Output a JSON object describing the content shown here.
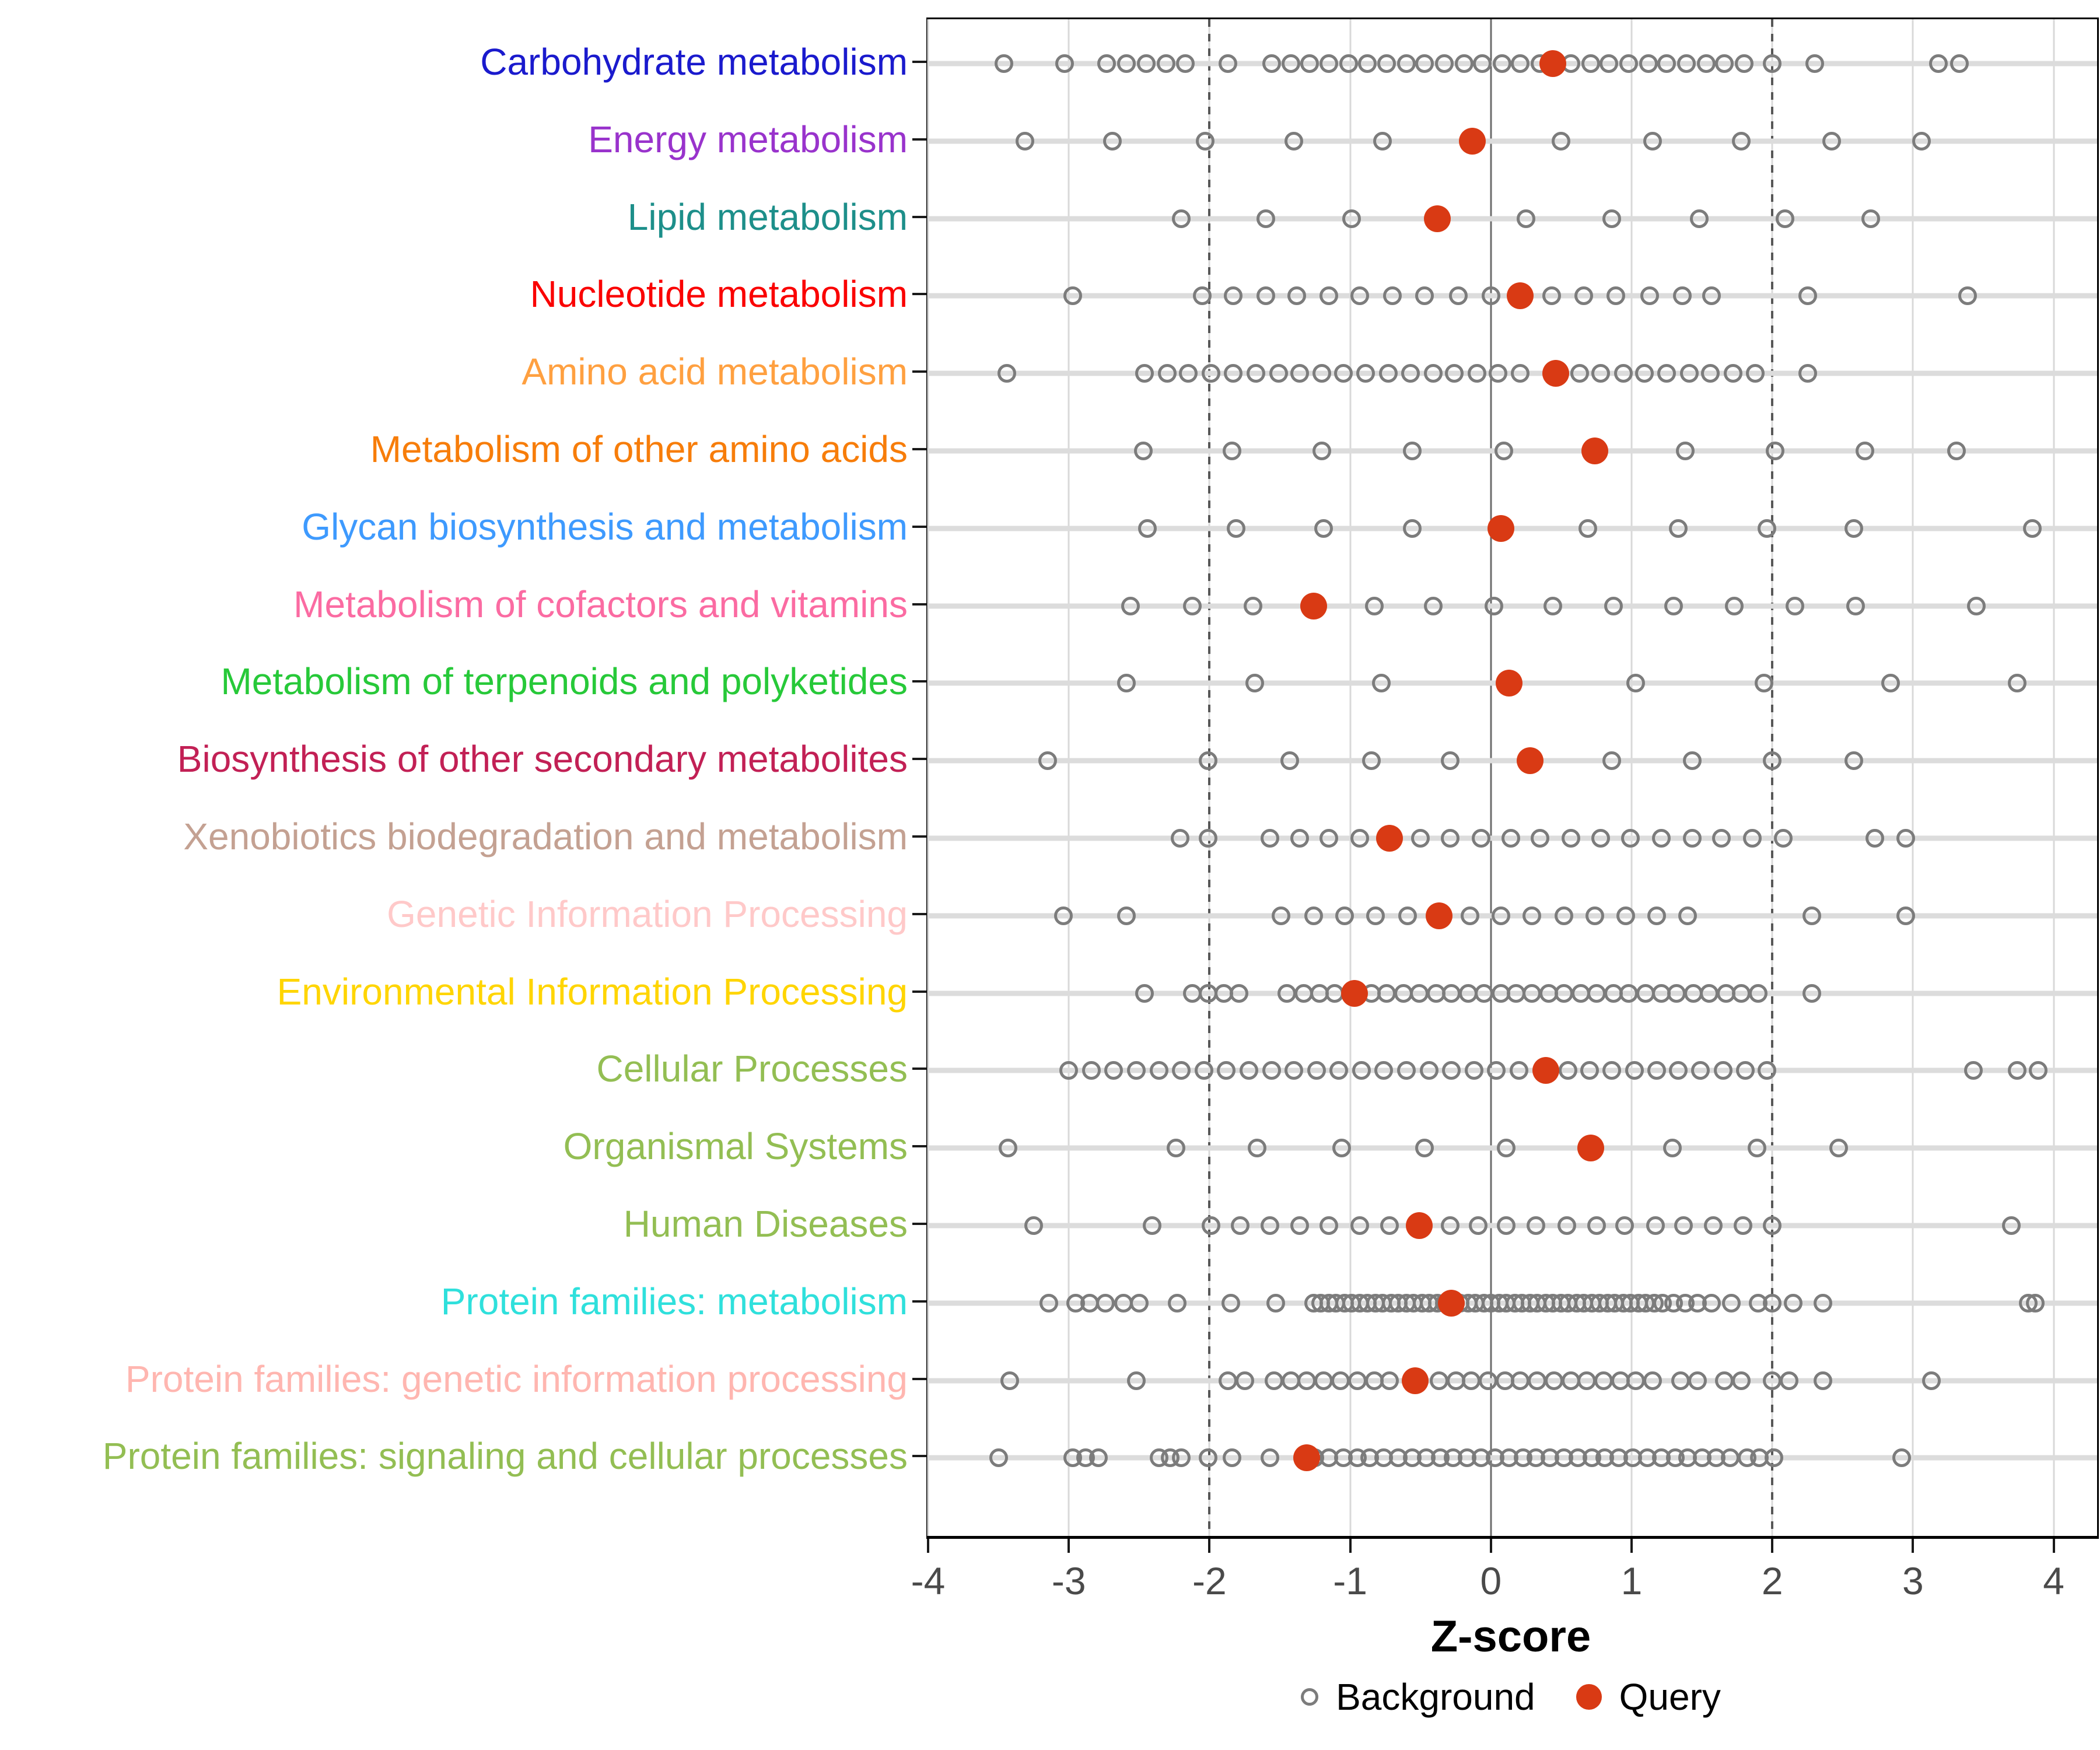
{
  "axis": {
    "label": "Z-score",
    "ticks": [
      -4,
      -3,
      -2,
      -1,
      0,
      1,
      2,
      3,
      4
    ],
    "reference_lines_dashed": [
      -2,
      2
    ],
    "reference_line_solid": 0
  },
  "legend": {
    "background_label": "Background",
    "query_label": "Query"
  },
  "colors": {
    "query": "#d93a14",
    "background_stroke": "#7c7c7c",
    "row_band": "#dcdcdc",
    "gridline": "#d9d9d9",
    "zero_line": "#6b6b6b",
    "dashed_line": "#575757",
    "tick_label": "#4a4a4a"
  },
  "chart_data": {
    "type": "scatter",
    "xlabel": "Z-score",
    "xlim": [
      -4.0,
      4.31
    ],
    "legend_position": "bottom",
    "grid": true,
    "series_meaning": "Each row: gray open circles = Background z-scores, red dot = Query z-score",
    "categories": [
      {
        "label": "Carbohydrate metabolism",
        "color": "#1a1acd",
        "query": 0.44,
        "background": [
          -3.46,
          -3.03,
          -2.73,
          -2.59,
          -2.45,
          -2.31,
          -2.17,
          -1.87,
          -1.56,
          -1.42,
          -1.29,
          -1.15,
          -1.01,
          -0.88,
          -0.74,
          -0.6,
          -0.47,
          -0.33,
          -0.19,
          -0.06,
          0.08,
          0.21,
          0.35,
          0.57,
          0.71,
          0.84,
          0.98,
          1.12,
          1.25,
          1.39,
          1.53,
          1.66,
          1.8,
          2.0,
          2.3,
          3.18,
          3.33
        ]
      },
      {
        "label": "Energy metabolism",
        "color": "#9933cc",
        "query": -0.13,
        "background": [
          -3.31,
          -2.69,
          -2.03,
          -1.4,
          -0.77,
          0.5,
          1.15,
          1.78,
          2.42,
          3.06
        ]
      },
      {
        "label": "Lipid metabolism",
        "color": "#1d8f8a",
        "query": -0.38,
        "background": [
          -2.2,
          -1.6,
          -0.99,
          0.25,
          0.86,
          1.48,
          2.09,
          2.7
        ]
      },
      {
        "label": "Nucleotide metabolism",
        "color": "#fa0000",
        "query": 0.21,
        "background": [
          -2.97,
          -2.05,
          -1.83,
          -1.6,
          -1.38,
          -1.15,
          -0.93,
          -0.7,
          -0.47,
          -0.23,
          0.0,
          0.43,
          0.66,
          0.89,
          1.13,
          1.36,
          1.57,
          2.25,
          3.39
        ]
      },
      {
        "label": "Amino acid metabolism",
        "color": "#ffa040",
        "query": 0.46,
        "background": [
          -3.44,
          -2.46,
          -2.3,
          -2.15,
          -1.99,
          -1.83,
          -1.67,
          -1.51,
          -1.36,
          -1.2,
          -1.05,
          -0.89,
          -0.73,
          -0.57,
          -0.41,
          -0.26,
          -0.1,
          0.05,
          0.21,
          0.63,
          0.78,
          0.94,
          1.09,
          1.25,
          1.41,
          1.56,
          1.72,
          1.88,
          2.25
        ]
      },
      {
        "label": "Metabolism of other amino acids",
        "color": "#f77d0a",
        "query": 0.74,
        "background": [
          -2.47,
          -1.84,
          -1.2,
          -0.56,
          0.09,
          1.38,
          2.02,
          2.66,
          3.31
        ]
      },
      {
        "label": "Glycan biosynthesis and metabolism",
        "color": "#3e9afe",
        "query": 0.07,
        "background": [
          -2.44,
          -1.81,
          -1.19,
          -0.56,
          0.69,
          1.33,
          1.96,
          2.58,
          3.85
        ]
      },
      {
        "label": "Metabolism of cofactors and vitamins",
        "color": "#fb6ba2",
        "query": -1.26,
        "background": [
          -2.56,
          -2.12,
          -1.69,
          -0.83,
          -0.41,
          0.02,
          0.44,
          0.87,
          1.3,
          1.73,
          2.16,
          2.59,
          3.45
        ]
      },
      {
        "label": "Metabolism of terpenoids and polyketides",
        "color": "#27c939",
        "query": 0.13,
        "background": [
          -2.59,
          -1.68,
          -0.78,
          1.03,
          1.94,
          2.84,
          3.74
        ]
      },
      {
        "label": "Biosynthesis of other secondary metabolites",
        "color": "#c22055",
        "query": 0.28,
        "background": [
          -3.15,
          -2.01,
          -1.43,
          -0.85,
          -0.29,
          0.86,
          1.43,
          2.0,
          2.58
        ]
      },
      {
        "label": "Xenobiotics biodegradation and metabolism",
        "color": "#c4a192",
        "query": -0.72,
        "background": [
          -2.21,
          -2.01,
          -1.57,
          -1.36,
          -1.15,
          -0.93,
          -0.5,
          -0.29,
          -0.07,
          0.14,
          0.35,
          0.57,
          0.78,
          0.99,
          1.21,
          1.43,
          1.64,
          1.86,
          2.08,
          2.73,
          2.95
        ]
      },
      {
        "label": "Genetic Information Processing",
        "color": "#ffc9c9",
        "query": -0.37,
        "background": [
          -3.04,
          -2.59,
          -1.49,
          -1.26,
          -1.04,
          -0.82,
          -0.59,
          -0.15,
          0.07,
          0.29,
          0.52,
          0.74,
          0.96,
          1.18,
          1.4,
          2.28,
          2.95
        ]
      },
      {
        "label": "Environmental Information Processing",
        "color": "#ffd500",
        "query": -0.97,
        "background": [
          -2.46,
          -2.12,
          -2.01,
          -1.9,
          -1.79,
          -1.45,
          -1.33,
          -1.22,
          -1.11,
          -0.85,
          -0.74,
          -0.62,
          -0.51,
          -0.39,
          -0.28,
          -0.16,
          -0.05,
          0.07,
          0.18,
          0.29,
          0.41,
          0.52,
          0.64,
          0.75,
          0.87,
          0.98,
          1.1,
          1.21,
          1.32,
          1.44,
          1.55,
          1.67,
          1.78,
          1.9,
          2.28
        ]
      },
      {
        "label": "Cellular Processes",
        "color": "#93be53",
        "query": 0.39,
        "background": [
          -3.0,
          -2.84,
          -2.68,
          -2.52,
          -2.36,
          -2.2,
          -2.04,
          -1.88,
          -1.72,
          -1.56,
          -1.4,
          -1.24,
          -1.08,
          -0.92,
          -0.76,
          -0.6,
          -0.44,
          -0.28,
          -0.12,
          0.04,
          0.2,
          0.55,
          0.7,
          0.86,
          1.02,
          1.18,
          1.33,
          1.49,
          1.65,
          1.81,
          1.96,
          3.43,
          3.74,
          3.89
        ]
      },
      {
        "label": "Organismal Systems",
        "color": "#93be53",
        "query": 0.71,
        "background": [
          -3.43,
          -2.24,
          -1.66,
          -1.06,
          -0.47,
          0.11,
          1.29,
          1.89,
          2.47
        ]
      },
      {
        "label": "Human Diseases",
        "color": "#93be53",
        "query": -0.51,
        "background": [
          -3.25,
          -2.41,
          -1.99,
          -1.78,
          -1.57,
          -1.36,
          -1.15,
          -0.93,
          -0.72,
          -0.29,
          -0.09,
          0.11,
          0.32,
          0.54,
          0.75,
          0.95,
          1.17,
          1.37,
          1.58,
          1.79,
          2.0,
          3.7
        ]
      },
      {
        "label": "Protein families: metabolism",
        "color": "#2fe0dc",
        "query": -0.28,
        "background": [
          -3.14,
          -2.95,
          -2.85,
          -2.74,
          -2.61,
          -2.5,
          -2.23,
          -1.85,
          -1.53,
          -1.26,
          -1.21,
          -1.15,
          -1.1,
          -1.04,
          -0.99,
          -0.93,
          -0.88,
          -0.82,
          -0.77,
          -0.71,
          -0.66,
          -0.6,
          -0.55,
          -0.49,
          -0.44,
          -0.38,
          -0.33,
          -0.27,
          -0.22,
          -0.16,
          -0.11,
          -0.05,
          0.0,
          0.06,
          0.11,
          0.17,
          0.22,
          0.28,
          0.33,
          0.39,
          0.44,
          0.5,
          0.55,
          0.61,
          0.66,
          0.72,
          0.77,
          0.83,
          0.88,
          0.94,
          0.99,
          1.05,
          1.1,
          1.16,
          1.22,
          1.3,
          1.38,
          1.47,
          1.57,
          1.71,
          1.9,
          2.0,
          2.15,
          2.36,
          3.82,
          3.87
        ]
      },
      {
        "label": "Protein families: genetic information processing",
        "color": "#ffb6b0",
        "query": -0.54,
        "background": [
          -3.42,
          -2.52,
          -1.87,
          -1.75,
          -1.54,
          -1.42,
          -1.31,
          -1.19,
          -1.07,
          -0.95,
          -0.83,
          -0.72,
          -0.37,
          -0.25,
          -0.14,
          -0.02,
          0.1,
          0.21,
          0.33,
          0.45,
          0.57,
          0.68,
          0.8,
          0.92,
          1.03,
          1.15,
          1.35,
          1.47,
          1.66,
          1.78,
          2.0,
          2.12,
          2.36,
          3.13
        ]
      },
      {
        "label": "Protein families: signaling and cellular processes",
        "color": "#93be53",
        "query": -1.31,
        "background": [
          -3.5,
          -2.97,
          -2.88,
          -2.79,
          -2.36,
          -2.28,
          -2.2,
          -2.01,
          -1.84,
          -1.57,
          -1.25,
          -1.15,
          -1.05,
          -0.95,
          -0.86,
          -0.76,
          -0.66,
          -0.56,
          -0.46,
          -0.36,
          -0.27,
          -0.17,
          -0.07,
          0.03,
          0.13,
          0.23,
          0.32,
          0.42,
          0.52,
          0.62,
          0.72,
          0.81,
          0.91,
          1.01,
          1.11,
          1.21,
          1.31,
          1.4,
          1.5,
          1.6,
          1.7,
          1.82,
          1.91,
          2.01,
          2.92
        ]
      }
    ]
  }
}
